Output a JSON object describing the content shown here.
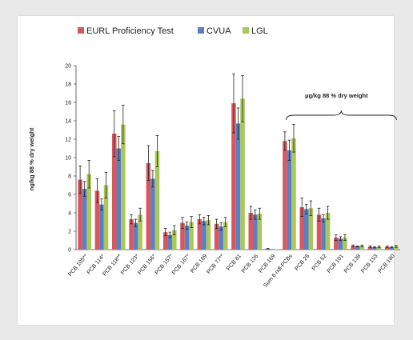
{
  "chart_data": {
    "type": "bar",
    "title": "",
    "xlabel": "",
    "ylabel": "ng/kg 88 % dry weight",
    "ylim": [
      0,
      20
    ],
    "yticks": [
      0,
      2,
      4,
      6,
      8,
      10,
      12,
      14,
      16,
      18,
      20
    ],
    "grid": false,
    "legend_position": "top",
    "categories": [
      "PCB 105**",
      "PCB 114*",
      "PCB 118**",
      "PCB 123*",
      "PCB 156*",
      "PCB 157*",
      "PCB 167*",
      "PCB 189",
      "PCB 77**",
      "PCB 81",
      "PCB 126",
      "PCB 169",
      "Sum 6 ndl-PCBs",
      "PCB 28",
      "PCB 52",
      "PCB 101",
      "PCB 138",
      "PCB 153",
      "PCB 180"
    ],
    "series": [
      {
        "name": "EURL Proficiency Test",
        "color": "#d9585e",
        "values": [
          7.6,
          6.4,
          12.6,
          3.3,
          9.4,
          1.9,
          2.9,
          3.3,
          2.8,
          15.9,
          4.0,
          0.1,
          11.8,
          4.6,
          3.8,
          1.3,
          0.4,
          0.3,
          0.3
        ],
        "errors": [
          1.5,
          1.3,
          2.5,
          0.5,
          1.9,
          0.4,
          0.6,
          0.5,
          0.5,
          3.2,
          0.7,
          0.02,
          1.0,
          1.0,
          0.7,
          0.3,
          0.1,
          0.1,
          0.1
        ]
      },
      {
        "name": "CVUA",
        "color": "#5b7fc4",
        "values": [
          6.6,
          4.9,
          11.0,
          2.9,
          7.7,
          1.6,
          2.6,
          3.1,
          2.5,
          13.7,
          3.8,
          0.0,
          10.8,
          4.4,
          3.4,
          1.2,
          0.35,
          0.25,
          0.25
        ],
        "errors": [
          0.8,
          0.6,
          1.3,
          0.4,
          0.9,
          0.3,
          0.4,
          0.4,
          0.4,
          1.7,
          0.5,
          0.0,
          1.1,
          0.5,
          0.4,
          0.2,
          0.05,
          0.05,
          0.05
        ]
      },
      {
        "name": "LGL",
        "color": "#a9c85a",
        "values": [
          8.2,
          7.0,
          13.6,
          3.8,
          10.7,
          2.1,
          3.0,
          3.2,
          3.0,
          16.4,
          3.9,
          0.0,
          12.1,
          4.5,
          4.0,
          1.3,
          0.4,
          0.3,
          0.35
        ],
        "errors": [
          1.5,
          1.4,
          2.1,
          0.7,
          1.7,
          0.5,
          0.6,
          0.5,
          0.5,
          2.5,
          0.6,
          0.0,
          1.5,
          0.8,
          0.7,
          0.3,
          0.1,
          0.1,
          0.1
        ]
      }
    ],
    "annotations": [
      {
        "text": "µg/kg 88 % dry weight",
        "spans": [
          "Sum 6 ndl-PCBs",
          "PCB 180"
        ]
      }
    ]
  }
}
